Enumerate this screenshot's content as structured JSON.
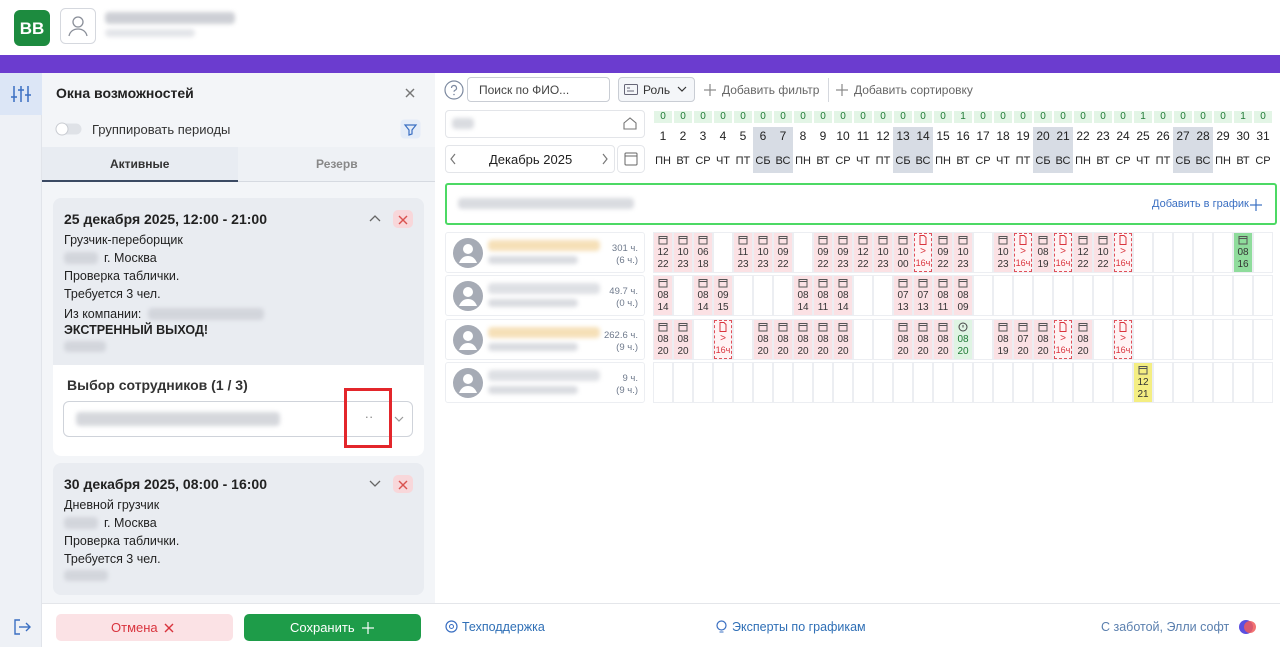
{
  "header": {
    "logo": "BB"
  },
  "panel": {
    "title": "Окна возможностей",
    "group_toggle": "Группировать периоды",
    "tabs": [
      "Активные",
      "Резерв"
    ],
    "cards": [
      {
        "datetime": "25 декабря 2025, 12:00 - 21:00",
        "position": "Грузчик-переборщик",
        "city": "г. Москва",
        "note": "Проверка таблички.",
        "required": "Требуется 3 чел.",
        "company_label": "Из компании:",
        "urgent": "ЭКСТРЕННЫЙ ВЫХОД!",
        "selection_label": "Выбор сотрудников (1 / 3)",
        "select_more": "··"
      },
      {
        "datetime": "30 декабря 2025, 08:00 - 16:00",
        "position": "Дневной грузчик",
        "city": "г. Москва",
        "note": "Проверка таблички.",
        "required": "Требуется 3 чел."
      }
    ]
  },
  "footer": {
    "cancel": "Отмена",
    "save": "Сохранить",
    "support": "Техподдержка",
    "experts": "Эксперты по графикам",
    "credit": "С заботой, Элли софт"
  },
  "toolbar": {
    "search_placeholder": "Поиск по ФИО...",
    "role": "Роль",
    "add_filter": "Добавить фильтр",
    "add_sort": "Добавить сортировку"
  },
  "calendar": {
    "month": "Декабрь 2025",
    "add_to_schedule": "Добавить в график",
    "days": [
      {
        "day": 1,
        "count": 0,
        "weekday": "ПН",
        "weekend": false
      },
      {
        "day": 2,
        "count": 0,
        "weekday": "ВТ",
        "weekend": false
      },
      {
        "day": 3,
        "count": 0,
        "weekday": "СР",
        "weekend": false
      },
      {
        "day": 4,
        "count": 0,
        "weekday": "ЧТ",
        "weekend": false
      },
      {
        "day": 5,
        "count": 0,
        "weekday": "ПТ",
        "weekend": false
      },
      {
        "day": 6,
        "count": 0,
        "weekday": "СБ",
        "weekend": true
      },
      {
        "day": 7,
        "count": 0,
        "weekday": "ВС",
        "weekend": true
      },
      {
        "day": 8,
        "count": 0,
        "weekday": "ПН",
        "weekend": false
      },
      {
        "day": 9,
        "count": 0,
        "weekday": "ВТ",
        "weekend": false
      },
      {
        "day": 10,
        "count": 0,
        "weekday": "СР",
        "weekend": false
      },
      {
        "day": 11,
        "count": 0,
        "weekday": "ЧТ",
        "weekend": false
      },
      {
        "day": 12,
        "count": 0,
        "weekday": "ПТ",
        "weekend": false
      },
      {
        "day": 13,
        "count": 0,
        "weekday": "СБ",
        "weekend": true
      },
      {
        "day": 14,
        "count": 0,
        "weekday": "ВС",
        "weekend": true
      },
      {
        "day": 15,
        "count": 0,
        "weekday": "ПН",
        "weekend": false
      },
      {
        "day": 16,
        "count": 1,
        "weekday": "ВТ",
        "weekend": false
      },
      {
        "day": 17,
        "count": 0,
        "weekday": "СР",
        "weekend": false
      },
      {
        "day": 18,
        "count": 0,
        "weekday": "ЧТ",
        "weekend": false
      },
      {
        "day": 19,
        "count": 0,
        "weekday": "ПТ",
        "weekend": false
      },
      {
        "day": 20,
        "count": 0,
        "weekday": "СБ",
        "weekend": true
      },
      {
        "day": 21,
        "count": 0,
        "weekday": "ВС",
        "weekend": true
      },
      {
        "day": 22,
        "count": 0,
        "weekday": "ПН",
        "weekend": false
      },
      {
        "day": 23,
        "count": 0,
        "weekday": "ВТ",
        "weekend": false
      },
      {
        "day": 24,
        "count": 0,
        "weekday": "СР",
        "weekend": false
      },
      {
        "day": 25,
        "count": 1,
        "weekday": "ЧТ",
        "weekend": false
      },
      {
        "day": 26,
        "count": 0,
        "weekday": "ПТ",
        "weekend": false
      },
      {
        "day": 27,
        "count": 0,
        "weekday": "СБ",
        "weekend": true
      },
      {
        "day": 28,
        "count": 0,
        "weekday": "ВС",
        "weekend": true
      },
      {
        "day": 29,
        "count": 0,
        "weekday": "ПН",
        "weekend": false
      },
      {
        "day": 30,
        "count": 1,
        "weekday": "ВТ",
        "weekend": false
      },
      {
        "day": 31,
        "count": 0,
        "weekday": "СР",
        "weekend": false
      }
    ],
    "employees": [
      {
        "hours": "301 ч.",
        "hours_extra": "(6 ч.)",
        "shifts": [
          {
            "start": "12",
            "end": "22",
            "kind": "shift"
          },
          {
            "start": "10",
            "end": "23",
            "kind": "shift"
          },
          {
            "start": "06",
            "end": "18",
            "kind": "shift"
          },
          null,
          {
            "start": "11",
            "end": "23",
            "kind": "shift"
          },
          {
            "start": "10",
            "end": "23",
            "kind": "shift"
          },
          {
            "start": "09",
            "end": "22",
            "kind": "shift"
          },
          null,
          {
            "start": "09",
            "end": "22",
            "kind": "shift"
          },
          {
            "start": "09",
            "end": "23",
            "kind": "shift"
          },
          {
            "start": "12",
            "end": "22",
            "kind": "shift"
          },
          {
            "start": "10",
            "end": "23",
            "kind": "shift"
          },
          {
            "start": "10",
            "end": "00",
            "kind": "shift"
          },
          {
            "mark": ">",
            "dur": "16ч",
            "kind": "over"
          },
          {
            "start": "09",
            "end": "22",
            "kind": "shift"
          },
          {
            "start": "10",
            "end": "23",
            "kind": "shift"
          },
          null,
          {
            "start": "10",
            "end": "23",
            "kind": "shift"
          },
          {
            "mark": ">",
            "dur": "16ч",
            "kind": "over"
          },
          {
            "start": "08",
            "end": "19",
            "kind": "shift"
          },
          {
            "mark": ">",
            "dur": "16ч",
            "kind": "over"
          },
          {
            "start": "12",
            "end": "22",
            "kind": "shift"
          },
          {
            "start": "10",
            "end": "22",
            "kind": "shift"
          },
          {
            "mark": ">",
            "dur": "16ч",
            "kind": "over"
          },
          null,
          null,
          null,
          null,
          null,
          {
            "start": "08",
            "end": "16",
            "kind": "approved"
          },
          null
        ]
      },
      {
        "hours": "49.7 ч.",
        "hours_extra": "(0 ч.)",
        "shifts": [
          {
            "start": "08",
            "end": "14",
            "kind": "shift"
          },
          null,
          {
            "start": "08",
            "end": "14",
            "kind": "shift"
          },
          {
            "start": "09",
            "end": "15",
            "kind": "shift"
          },
          null,
          null,
          null,
          {
            "start": "08",
            "end": "14",
            "kind": "shift"
          },
          {
            "start": "08",
            "end": "11",
            "kind": "shift"
          },
          {
            "start": "08",
            "end": "14",
            "kind": "shift"
          },
          null,
          null,
          {
            "start": "07",
            "end": "13",
            "kind": "shift"
          },
          {
            "start": "07",
            "end": "13",
            "kind": "shift"
          },
          {
            "start": "08",
            "end": "11",
            "kind": "shift"
          },
          {
            "start": "08",
            "end": "09",
            "kind": "shift"
          },
          null,
          null,
          null,
          null,
          null,
          null,
          null,
          null,
          null,
          null,
          null,
          null,
          null,
          null,
          null
        ]
      },
      {
        "hours": "262.6 ч.",
        "hours_extra": "(9 ч.)",
        "shifts": [
          {
            "start": "08",
            "end": "20",
            "kind": "shift"
          },
          {
            "start": "08",
            "end": "20",
            "kind": "shift"
          },
          null,
          {
            "mark": ">",
            "dur": "16ч",
            "kind": "over"
          },
          null,
          {
            "start": "08",
            "end": "20",
            "kind": "shift"
          },
          {
            "start": "08",
            "end": "20",
            "kind": "shift"
          },
          {
            "start": "08",
            "end": "20",
            "kind": "shift"
          },
          {
            "start": "08",
            "end": "20",
            "kind": "shift"
          },
          {
            "start": "08",
            "end": "20",
            "kind": "shift"
          },
          null,
          null,
          {
            "start": "08",
            "end": "20",
            "kind": "shift"
          },
          {
            "start": "08",
            "end": "20",
            "kind": "shift"
          },
          {
            "start": "08",
            "end": "20",
            "kind": "shift"
          },
          {
            "start": "08",
            "end": "20",
            "kind": "confirmed"
          },
          null,
          {
            "start": "08",
            "end": "19",
            "kind": "shift"
          },
          {
            "start": "07",
            "end": "20",
            "kind": "shift"
          },
          {
            "start": "08",
            "end": "20",
            "kind": "shift"
          },
          {
            "mark": ">",
            "dur": "16ч",
            "kind": "over"
          },
          {
            "start": "08",
            "end": "20",
            "kind": "shift"
          },
          null,
          {
            "mark": ">",
            "dur": "16ч",
            "kind": "over"
          },
          null,
          null,
          null,
          null,
          null,
          null,
          null
        ]
      },
      {
        "hours": "9 ч.",
        "hours_extra": "(9 ч.)",
        "shifts": [
          null,
          null,
          null,
          null,
          null,
          null,
          null,
          null,
          null,
          null,
          null,
          null,
          null,
          null,
          null,
          null,
          null,
          null,
          null,
          null,
          null,
          null,
          null,
          null,
          {
            "start": "12",
            "end": "21",
            "kind": "extra"
          },
          null,
          null,
          null,
          null,
          null,
          null
        ]
      }
    ]
  }
}
